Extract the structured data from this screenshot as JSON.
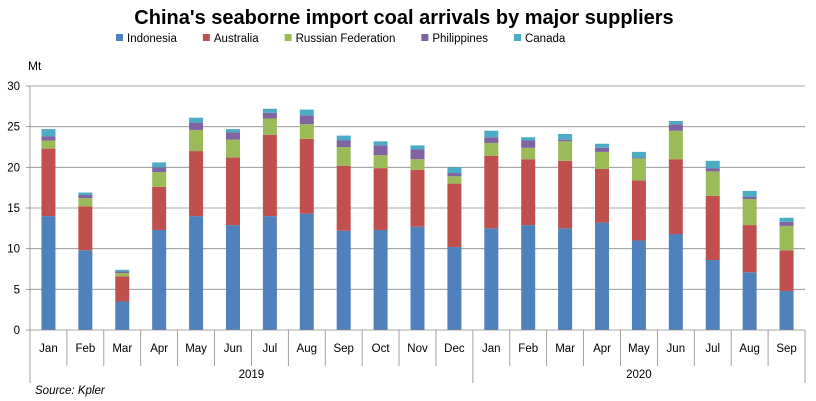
{
  "chart_data": {
    "type": "bar",
    "stacked": true,
    "title": "China's seaborne import coal arrivals by major suppliers",
    "ylabel": "Mt",
    "ylim": [
      0,
      30
    ],
    "yticks": [
      0,
      5,
      10,
      15,
      20,
      25,
      30
    ],
    "grid": true,
    "legend_position": "top",
    "categories": [
      "Jan",
      "Feb",
      "Mar",
      "Apr",
      "May",
      "Jun",
      "Jul",
      "Aug",
      "Sep",
      "Oct",
      "Nov",
      "Dec",
      "Jan",
      "Feb",
      "Mar",
      "Apr",
      "May",
      "Jun",
      "Jul",
      "Aug",
      "Sep"
    ],
    "year_groups": [
      {
        "label": "2019",
        "count": 12
      },
      {
        "label": "2020",
        "count": 9
      }
    ],
    "series": [
      {
        "name": "Indonesia",
        "color": "#4f81bd",
        "values": [
          14.0,
          9.8,
          3.5,
          12.3,
          14.0,
          12.9,
          14.0,
          14.3,
          12.2,
          12.3,
          12.7,
          10.2,
          12.5,
          12.9,
          12.5,
          13.2,
          11.0,
          11.8,
          8.6,
          7.1,
          4.8
        ]
      },
      {
        "name": "Australia",
        "color": "#c0504d",
        "values": [
          8.3,
          5.4,
          3.1,
          5.3,
          8.0,
          8.3,
          10.0,
          9.2,
          8.0,
          7.6,
          7.0,
          7.8,
          8.9,
          8.1,
          8.3,
          6.6,
          7.4,
          9.2,
          7.9,
          5.8,
          5.0
        ]
      },
      {
        "name": "Russian Federation",
        "color": "#9bbb59",
        "values": [
          1.0,
          1.0,
          0.4,
          1.8,
          2.6,
          2.2,
          2.0,
          1.8,
          2.3,
          1.6,
          1.3,
          0.9,
          1.6,
          1.4,
          2.4,
          2.1,
          2.7,
          3.5,
          3.0,
          3.2,
          3.0
        ]
      },
      {
        "name": "Philippines",
        "color": "#8064a2",
        "values": [
          0.5,
          0.4,
          0.2,
          0.6,
          0.9,
          0.9,
          0.7,
          1.1,
          0.8,
          1.2,
          1.2,
          0.4,
          0.7,
          0.9,
          0.2,
          0.5,
          0.1,
          0.8,
          0.4,
          0.3,
          0.5
        ]
      },
      {
        "name": "Canada",
        "color": "#4bacc6",
        "values": [
          0.9,
          0.3,
          0.2,
          0.6,
          0.6,
          0.4,
          0.5,
          0.7,
          0.6,
          0.5,
          0.5,
          0.7,
          0.8,
          0.4,
          0.7,
          0.5,
          0.7,
          0.4,
          0.9,
          0.7,
          0.5
        ]
      }
    ],
    "source": "Source: Kpler"
  }
}
